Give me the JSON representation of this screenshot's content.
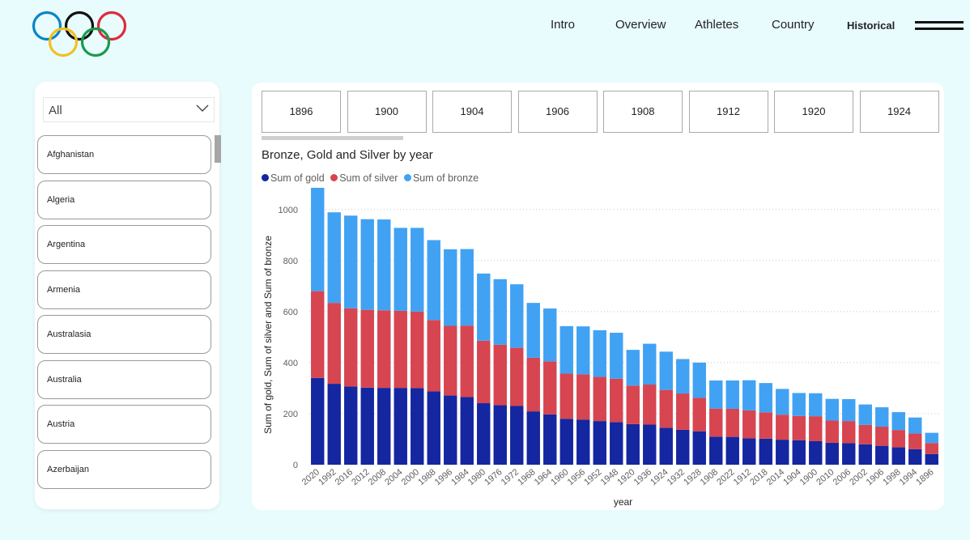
{
  "nav": {
    "items": [
      "Intro",
      "Overview",
      "Athletes",
      "Country",
      "Historical"
    ],
    "active": "Historical"
  },
  "slicer": {
    "selected": "All",
    "countries": [
      "Afghanistan",
      "Algeria",
      "Argentina",
      "Armenia",
      "Australasia",
      "Australia",
      "Austria",
      "Azerbaijan"
    ]
  },
  "year_tiles": [
    "1896",
    "1900",
    "1904",
    "1906",
    "1908",
    "1912",
    "1920",
    "1924"
  ],
  "colors": {
    "gold": "#1426a0",
    "silver": "#d64550",
    "bronze": "#41a2f3",
    "background": "#e8fbfd"
  },
  "chart_data": {
    "type": "bar",
    "stacked": true,
    "title": "Bronze, Gold and Silver by year",
    "xlabel": "year",
    "ylabel": "Sum of gold, Sum of silver and Sum of bronze",
    "ylim": [
      0,
      1050
    ],
    "yticks": [
      0,
      200,
      400,
      600,
      800,
      1000
    ],
    "legend_position": "top-left",
    "categories": [
      "2020",
      "1992",
      "2016",
      "2012",
      "2008",
      "2004",
      "2000",
      "1988",
      "1996",
      "1984",
      "1980",
      "1976",
      "1972",
      "1968",
      "1964",
      "1960",
      "1956",
      "1952",
      "1948",
      "1920",
      "1936",
      "1924",
      "1932",
      "1928",
      "1908",
      "2022",
      "1912",
      "2018",
      "2014",
      "1904",
      "1900",
      "2010",
      "2006",
      "2002",
      "1906",
      "1998",
      "1994",
      "1896"
    ],
    "series": [
      {
        "name": "Sum of gold",
        "values": [
          340,
          317,
          306,
          302,
          301,
          301,
          300,
          287,
          271,
          265,
          241,
          233,
          230,
          209,
          197,
          180,
          177,
          171,
          167,
          159,
          157,
          145,
          137,
          131,
          110,
          109,
          103,
          102,
          98,
          96,
          92,
          86,
          84,
          80,
          74,
          68,
          61,
          42
        ]
      },
      {
        "name": "Sum of silver",
        "values": [
          340,
          317,
          307,
          305,
          304,
          302,
          300,
          280,
          273,
          280,
          245,
          237,
          228,
          210,
          208,
          177,
          177,
          173,
          170,
          151,
          157,
          148,
          142,
          131,
          110,
          110,
          110,
          103,
          98,
          95,
          98,
          87,
          87,
          76,
          75,
          68,
          61,
          43
        ]
      },
      {
        "name": "Sum of bronze",
        "values": [
          405,
          355,
          363,
          355,
          356,
          325,
          328,
          313,
          300,
          300,
          263,
          257,
          249,
          215,
          207,
          186,
          188,
          183,
          180,
          140,
          160,
          150,
          135,
          138,
          110,
          111,
          118,
          115,
          101,
          90,
          90,
          85,
          86,
          80,
          76,
          70,
          63,
          40
        ]
      }
    ]
  }
}
